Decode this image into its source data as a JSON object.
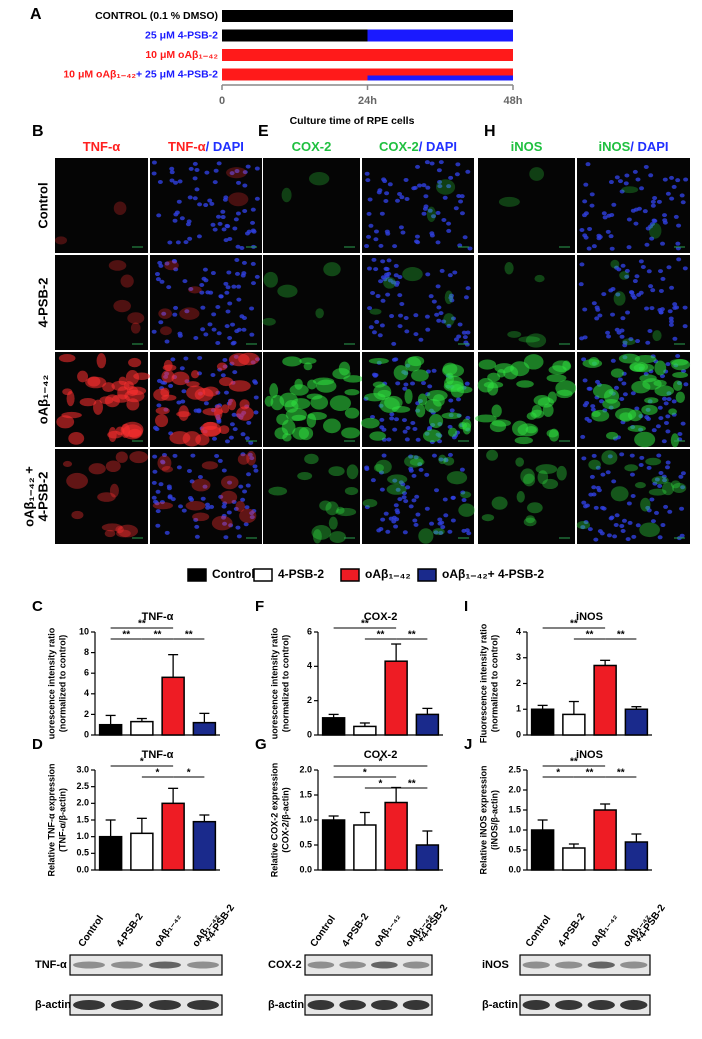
{
  "figure": {
    "panel_a": {
      "label": "A",
      "rows": [
        {
          "label": [
            {
              "text": "CONTROL (0.1 % DMSO)",
              "color": "#000000"
            }
          ],
          "segments": [
            {
              "from": 0,
              "to": 48,
              "color": "#000000"
            }
          ]
        },
        {
          "label": [
            {
              "text": "25 μM 4-PSB-2",
              "color": "#1a1aff"
            }
          ],
          "segments": [
            {
              "from": 0,
              "to": 24,
              "color": "#000000"
            },
            {
              "from": 24,
              "to": 48,
              "color": "#1a1aff"
            }
          ]
        },
        {
          "label": [
            {
              "text": "10 μM oAβ₁₋₄₂",
              "color": "#ff1a1a"
            }
          ],
          "segments": [
            {
              "from": 0,
              "to": 48,
              "color": "#ff1a1a"
            }
          ]
        },
        {
          "label": [
            {
              "text": "10 μM oAβ₁₋₄₂",
              "color": "#ff1a1a"
            },
            {
              "text": "+ 25 μM 4-PSB-2",
              "color": "#1a1aff"
            }
          ],
          "segments": [
            {
              "from": 0,
              "to": 48,
              "color": "#ff1a1a"
            },
            {
              "from": 24,
              "to": 48,
              "color": "#1a1aff"
            }
          ]
        }
      ],
      "xlim": [
        0,
        48
      ],
      "xticks": [
        0,
        {
          "value": 24,
          "label": "24h"
        },
        {
          "value": 48,
          "label": "48h"
        }
      ],
      "x_label": "Culture time of RPE cells"
    },
    "microscopy": [
      {
        "label": "B",
        "stain": "#ff3030",
        "columns": [
          [
            {
              "text": "TNF-α",
              "color": "#ff2020"
            }
          ],
          [
            {
              "text": "TNF-α",
              "color": "#ff2020"
            },
            {
              "text": "/ DAPI",
              "color": "#2030ff"
            }
          ]
        ]
      },
      {
        "label": "E",
        "stain": "#30e040",
        "columns": [
          [
            {
              "text": "COX-2",
              "color": "#20c040"
            }
          ],
          [
            {
              "text": "COX-2",
              "color": "#20c040"
            },
            {
              "text": "/ DAPI",
              "color": "#2030ff"
            }
          ]
        ]
      },
      {
        "label": "H",
        "stain": "#30e040",
        "columns": [
          [
            {
              "text": "iNOS",
              "color": "#20c040"
            }
          ],
          [
            {
              "text": "iNOS",
              "color": "#20c040"
            },
            {
              "text": "/ DAPI",
              "color": "#2030ff"
            }
          ]
        ]
      }
    ],
    "row_labels": [
      [
        "Control"
      ],
      [
        "4-PSB-2"
      ],
      [
        "oAβ₁₋₄₂"
      ],
      [
        "oAβ₁₋₄₂ +",
        "4-PSB-2"
      ]
    ],
    "legend": [
      {
        "name": "Control",
        "color": "#000000"
      },
      {
        "name": "4-PSB-2",
        "color": "#ffffff"
      },
      {
        "name": "oAβ₁₋₄₂",
        "color": "#ee1c24"
      },
      {
        "name": "oAβ₁₋₄₂+ 4-PSB-2",
        "color": "#1a2a8c"
      }
    ],
    "blot_lanes": [
      [
        "Control"
      ],
      [
        "4-PSB-2"
      ],
      [
        "oAβ₁₋₄₂"
      ],
      [
        "oAβ₁₋₄₂",
        "+4-PSB-2"
      ]
    ],
    "blots": [
      {
        "rows": [
          "TNF-α",
          "β-actin"
        ]
      },
      {
        "rows": [
          "COX-2",
          "β-actin"
        ]
      },
      {
        "rows": [
          "iNOS",
          "β-actin"
        ]
      }
    ]
  },
  "chart_data": [
    {
      "type": "bar",
      "label": "C",
      "title": "TNF-α",
      "y_label": [
        "uorescence intensity ratio",
        "(normalized to control)"
      ],
      "colors": [
        "#000000",
        "#ffffff",
        "#ee1c24",
        "#1a2a8c"
      ],
      "values": [
        1.0,
        1.3,
        5.6,
        1.2
      ],
      "errors": [
        0.9,
        0.3,
        2.2,
        0.9
      ],
      "ylim": [
        0,
        10
      ],
      "yticks": [
        0,
        2,
        4,
        6,
        8,
        10
      ],
      "significance": [
        {
          "from": 0,
          "to": 2,
          "label": "**"
        },
        {
          "from": 0,
          "to": 1,
          "label": "**"
        },
        {
          "from": 1,
          "to": 2,
          "label": "**"
        },
        {
          "from": 2,
          "to": 3,
          "label": "**"
        }
      ]
    },
    {
      "type": "bar",
      "label": "F",
      "title": "COX-2",
      "y_label": [
        "uorescence intensity ratio",
        "(normalized to control)"
      ],
      "colors": [
        "#000000",
        "#ffffff",
        "#ee1c24",
        "#1a2a8c"
      ],
      "values": [
        1.0,
        0.5,
        4.3,
        1.2
      ],
      "errors": [
        0.2,
        0.2,
        1.0,
        0.35
      ],
      "ylim": [
        0,
        6
      ],
      "yticks": [
        0,
        2,
        4,
        6
      ],
      "significance": [
        {
          "from": 0,
          "to": 2,
          "label": "**"
        },
        {
          "from": 1,
          "to": 2,
          "label": "**"
        },
        {
          "from": 2,
          "to": 3,
          "label": "**"
        }
      ]
    },
    {
      "type": "bar",
      "label": "I",
      "title": "iNOS",
      "y_label": [
        "Fluorescence intensity ratio",
        "(normalized to control)"
      ],
      "colors": [
        "#000000",
        "#ffffff",
        "#ee1c24",
        "#1a2a8c"
      ],
      "values": [
        1.0,
        0.8,
        2.7,
        1.0
      ],
      "errors": [
        0.15,
        0.5,
        0.2,
        0.1
      ],
      "ylim": [
        0,
        4
      ],
      "yticks": [
        0,
        1,
        2,
        3,
        4
      ],
      "significance": [
        {
          "from": 0,
          "to": 2,
          "label": "**"
        },
        {
          "from": 1,
          "to": 2,
          "label": "**"
        },
        {
          "from": 2,
          "to": 3,
          "label": "**"
        }
      ]
    },
    {
      "type": "bar",
      "label": "D",
      "title": "TNF-α",
      "y_label": [
        "Relative TNF-α expression",
        "(TNF-α/β-actin)"
      ],
      "colors": [
        "#000000",
        "#ffffff",
        "#ee1c24",
        "#1a2a8c"
      ],
      "values": [
        1.0,
        1.1,
        2.0,
        1.45
      ],
      "errors": [
        0.5,
        0.45,
        0.45,
        0.2
      ],
      "ylim": [
        0,
        3
      ],
      "yticks": [
        {
          "value": 0,
          "label": "0.0"
        },
        0.5,
        {
          "value": 1,
          "label": "1.0"
        },
        1.5,
        {
          "value": 2,
          "label": "2.0"
        },
        2.5,
        {
          "value": 3,
          "label": "3.0"
        }
      ],
      "significance": [
        {
          "from": 0,
          "to": 2,
          "label": "*"
        },
        {
          "from": 1,
          "to": 2,
          "label": "*"
        },
        {
          "from": 2,
          "to": 3,
          "label": "*"
        }
      ]
    },
    {
      "type": "bar",
      "label": "G",
      "title": "COX-2",
      "y_label": [
        "Relative COX-2 expression",
        "(COX-2/β-actin)"
      ],
      "colors": [
        "#000000",
        "#ffffff",
        "#ee1c24",
        "#1a2a8c"
      ],
      "values": [
        1.0,
        0.9,
        1.35,
        0.5
      ],
      "errors": [
        0.08,
        0.25,
        0.3,
        0.28
      ],
      "ylim": [
        0,
        2
      ],
      "yticks": [
        {
          "value": 0,
          "label": "0.0"
        },
        0.5,
        {
          "value": 1,
          "label": "1.0"
        },
        1.5,
        {
          "value": 2,
          "label": "2.0"
        }
      ],
      "significance": [
        {
          "from": 0,
          "to": 3,
          "label": "*"
        },
        {
          "from": 0,
          "to": 2,
          "label": "*"
        },
        {
          "from": 1,
          "to": 2,
          "label": "*"
        },
        {
          "from": 2,
          "to": 3,
          "label": "**"
        }
      ]
    },
    {
      "type": "bar",
      "label": "J",
      "title": "iNOS",
      "y_label": [
        "Relative iNOS expression",
        "(iNOS/β-actin)"
      ],
      "colors": [
        "#000000",
        "#ffffff",
        "#ee1c24",
        "#1a2a8c"
      ],
      "values": [
        1.0,
        0.55,
        1.5,
        0.7
      ],
      "errors": [
        0.25,
        0.1,
        0.15,
        0.2
      ],
      "ylim": [
        0,
        2.5
      ],
      "yticks": [
        {
          "value": 0,
          "label": "0.0"
        },
        0.5,
        {
          "value": 1,
          "label": "1.0"
        },
        1.5,
        {
          "value": 2,
          "label": "2.0"
        },
        2.5
      ],
      "significance": [
        {
          "from": 0,
          "to": 2,
          "label": "**"
        },
        {
          "from": 0,
          "to": 1,
          "label": "*"
        },
        {
          "from": 1,
          "to": 2,
          "label": "**"
        },
        {
          "from": 2,
          "to": 3,
          "label": "**"
        }
      ]
    }
  ]
}
